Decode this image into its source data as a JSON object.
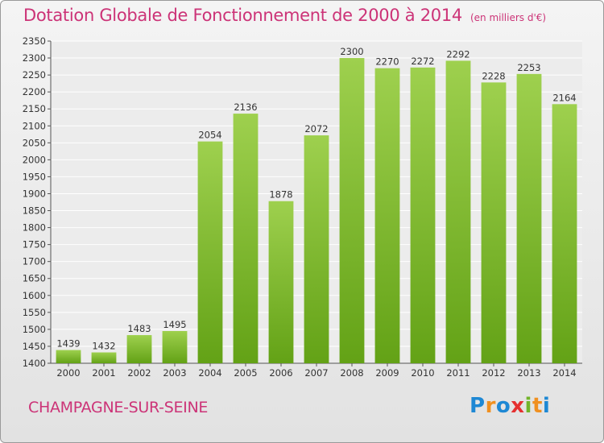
{
  "title": "Dotation Globale de Fonctionnement de 2000 à 2014",
  "unit_note": "(en milliers d'€)",
  "commune": "CHAMPAGNE-SUR-SEINE",
  "logo": [
    "P",
    "r",
    "o",
    "x",
    "i",
    "t",
    "i"
  ],
  "colors": {
    "accent": "#cc3377",
    "bar_top": "#9ed04e",
    "bar_bottom": "#63a216"
  },
  "chart_data": {
    "type": "bar",
    "title": "Dotation Globale de Fonctionnement de 2000 à 2014",
    "subtitle": "(en milliers d'€)",
    "xlabel": "",
    "ylabel": "",
    "categories": [
      "2000",
      "2001",
      "2002",
      "2003",
      "2004",
      "2005",
      "2006",
      "2007",
      "2008",
      "2009",
      "2010",
      "2011",
      "2012",
      "2013",
      "2014"
    ],
    "values": [
      1439,
      1432,
      1483,
      1495,
      2054,
      2136,
      1878,
      2072,
      2300,
      2270,
      2272,
      2292,
      2228,
      2253,
      2164
    ],
    "ylim": [
      1400,
      2350
    ],
    "yticks": [
      1400,
      1450,
      1500,
      1550,
      1600,
      1650,
      1700,
      1750,
      1800,
      1850,
      1900,
      1950,
      2000,
      2050,
      2100,
      2150,
      2200,
      2250,
      2300,
      2350
    ],
    "grid": true,
    "legend": "none"
  }
}
